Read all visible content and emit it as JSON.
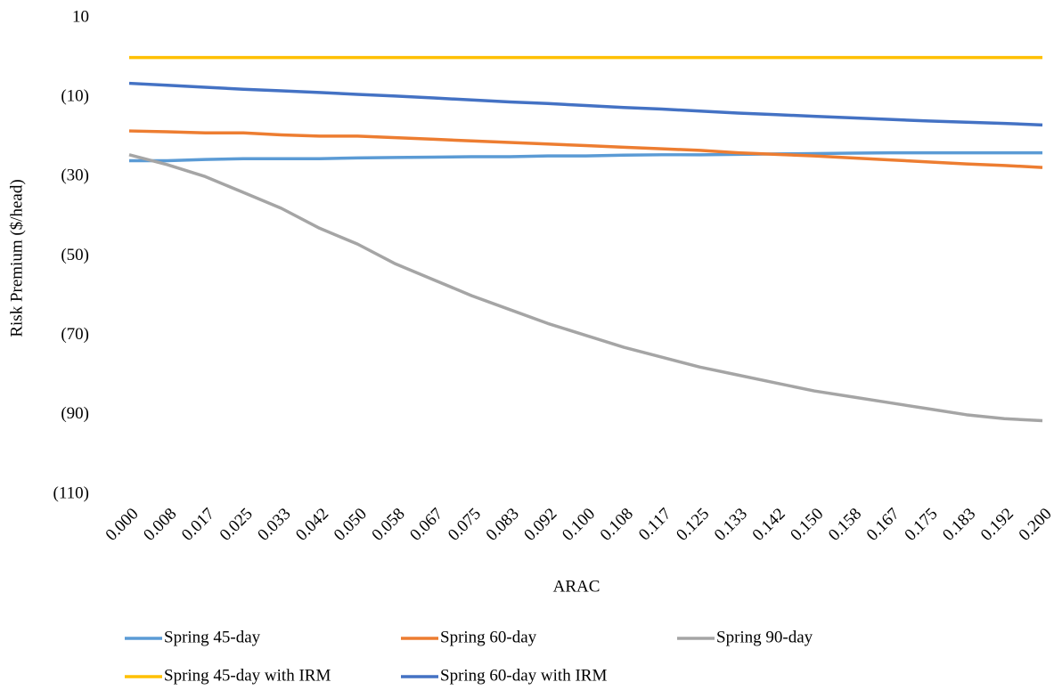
{
  "chart_data": {
    "type": "line",
    "y_label": "Risk Premium  ($/head)",
    "x_label": "ARAC",
    "categories": [
      "0.000",
      "0.008",
      "0.017",
      "0.025",
      "0.033",
      "0.042",
      "0.050",
      "0.058",
      "0.067",
      "0.075",
      "0.083",
      "0.092",
      "0.100",
      "0.108",
      "0.117",
      "0.125",
      "0.133",
      "0.142",
      "0.150",
      "0.158",
      "0.167",
      "0.175",
      "0.183",
      "0.192",
      "0.200"
    ],
    "series": [
      {
        "name": "Spring 45-day",
        "color": "#5b9bd5",
        "values": [
          -26,
          -26,
          -25.7,
          -25.5,
          -25.5,
          -25.5,
          -25.3,
          -25.2,
          -25.1,
          -25,
          -25,
          -24.8,
          -24.8,
          -24.6,
          -24.5,
          -24.5,
          -24.4,
          -24.3,
          -24.2,
          -24.1,
          -24,
          -24,
          -24,
          -24,
          -24
        ]
      },
      {
        "name": "Spring 60-day",
        "color": "#ed7d31",
        "values": [
          -18.5,
          -18.7,
          -19,
          -19,
          -19.5,
          -19.8,
          -19.8,
          -20.2,
          -20.6,
          -21,
          -21.4,
          -21.8,
          -22.2,
          -22.6,
          -23,
          -23.4,
          -24,
          -24.4,
          -24.8,
          -25.3,
          -25.8,
          -26.3,
          -26.8,
          -27.2,
          -27.7
        ]
      },
      {
        "name": "Spring 90-day",
        "color": "#a5a5a5",
        "values": [
          -24.5,
          -27,
          -30,
          -34,
          -38,
          -43,
          -47,
          -52,
          -56,
          -60,
          -63.5,
          -67,
          -70,
          -73,
          -75.5,
          -78,
          -80,
          -82,
          -84,
          -85.5,
          -87,
          -88.5,
          -90,
          -91,
          -91.5
        ]
      },
      {
        "name": "Spring 45-day with IRM",
        "color": "#ffc000",
        "values": [
          0,
          0,
          0,
          0,
          0,
          0,
          0,
          0,
          0,
          0,
          0,
          0,
          0,
          0,
          0,
          0,
          0,
          0,
          0,
          0,
          0,
          0,
          0,
          0,
          0
        ]
      },
      {
        "name": "Spring 60-day with IRM",
        "color": "#4472c4",
        "values": [
          -6.5,
          -7,
          -7.5,
          -8,
          -8.4,
          -8.8,
          -9.3,
          -9.7,
          -10.2,
          -10.7,
          -11.2,
          -11.6,
          -12.1,
          -12.6,
          -13,
          -13.5,
          -14,
          -14.4,
          -14.8,
          -15.2,
          -15.6,
          -16,
          -16.3,
          -16.6,
          -17
        ]
      }
    ],
    "ylim": [
      -110,
      10
    ],
    "yticks": [
      10,
      {
        "value": -10,
        "label": "(10)"
      },
      {
        "value": -30,
        "label": "(30)"
      },
      {
        "value": -50,
        "label": "(50)"
      },
      {
        "value": -70,
        "label": "(70)"
      },
      {
        "value": -90,
        "label": "(90)"
      },
      {
        "value": -110,
        "label": "(110)"
      }
    ],
    "grid": false,
    "legend": "bottom"
  }
}
